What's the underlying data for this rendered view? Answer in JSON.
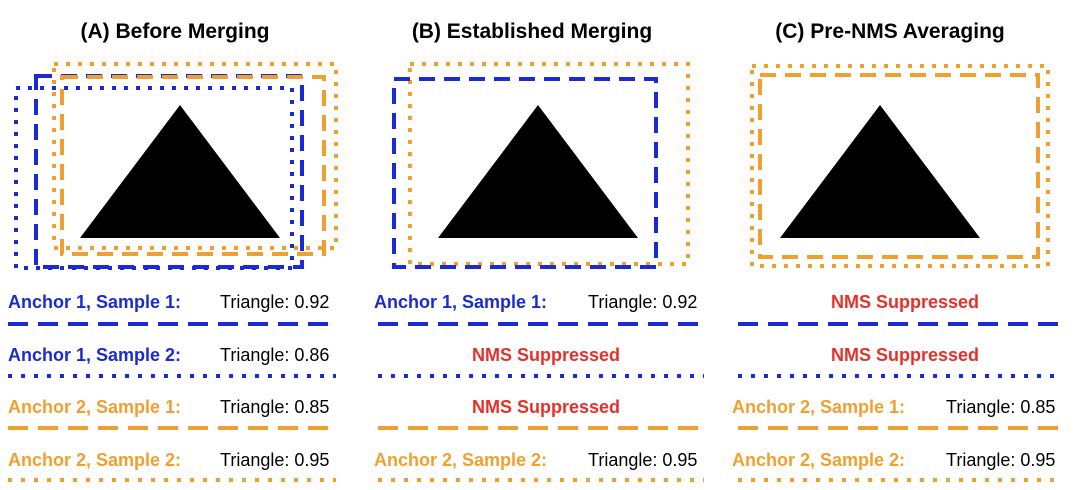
{
  "colors": {
    "blue": "#1a2bd6",
    "orange": "#f0a030",
    "red": "#e8302a",
    "black": "#000000"
  },
  "panels": [
    {
      "title": "(A) Before Merging",
      "rows": [
        {
          "label": "Anchor 1, Sample 1:",
          "color": "blue",
          "style": "dashed",
          "score": "Triangle: 0.92",
          "suppressed": ""
        },
        {
          "label": "Anchor 1, Sample 2:",
          "color": "blue",
          "style": "dotted",
          "score": "Triangle: 0.86",
          "suppressed": ""
        },
        {
          "label": "Anchor 2, Sample 1:",
          "color": "orange",
          "style": "dashed",
          "score": "Triangle: 0.85",
          "suppressed": ""
        },
        {
          "label": "Anchor 2, Sample 2:",
          "color": "orange",
          "style": "dotted",
          "score": "Triangle: 0.95",
          "suppressed": ""
        }
      ]
    },
    {
      "title": "(B) Established Merging",
      "rows": [
        {
          "label": "Anchor 1, Sample 1:",
          "color": "blue",
          "style": "dashed",
          "score": "Triangle: 0.92",
          "suppressed": ""
        },
        {
          "label": "",
          "color": "blue",
          "style": "dotted",
          "score": "",
          "suppressed": "NMS Suppressed"
        },
        {
          "label": "",
          "color": "orange",
          "style": "dashed",
          "score": "",
          "suppressed": "NMS Suppressed"
        },
        {
          "label": "Anchor 2, Sample 2:",
          "color": "orange",
          "style": "dotted",
          "score": "Triangle: 0.95",
          "suppressed": ""
        }
      ]
    },
    {
      "title": "(C) Pre-NMS Averaging",
      "rows": [
        {
          "label": "",
          "color": "blue",
          "style": "dashed",
          "score": "",
          "suppressed": "NMS Suppressed"
        },
        {
          "label": "",
          "color": "blue",
          "style": "dotted",
          "score": "",
          "suppressed": "NMS Suppressed"
        },
        {
          "label": "Anchor 2, Sample 1:",
          "color": "orange",
          "style": "dashed",
          "score": "Triangle: 0.85",
          "suppressed": ""
        },
        {
          "label": "Anchor 2, Sample 2:",
          "color": "orange",
          "style": "dotted",
          "score": "Triangle: 0.95",
          "suppressed": ""
        }
      ]
    }
  ]
}
